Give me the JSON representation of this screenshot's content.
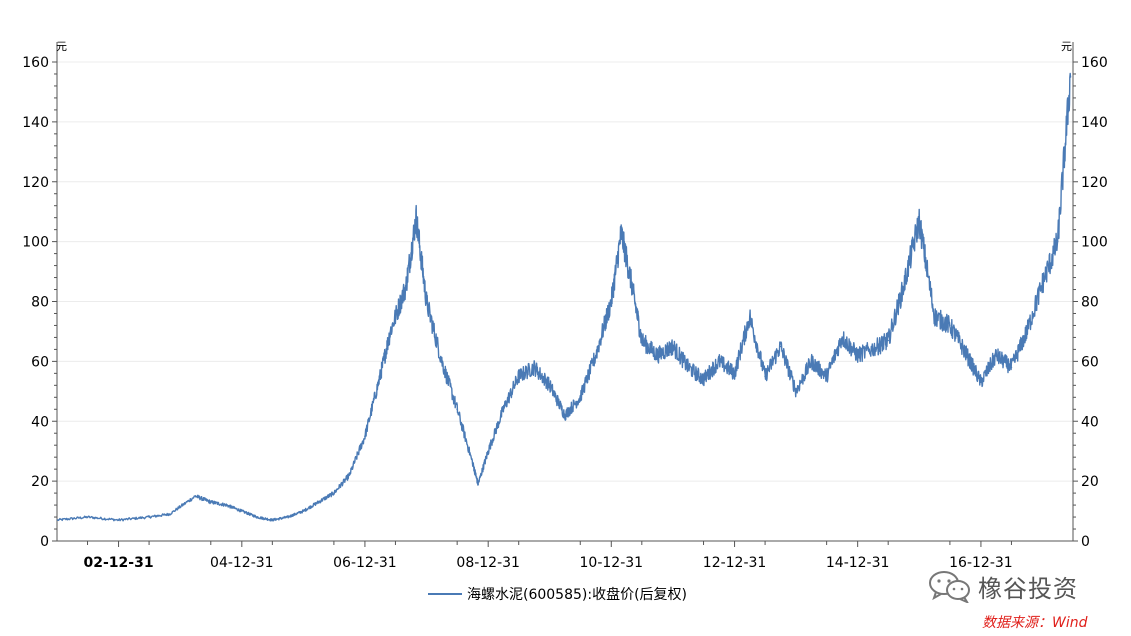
{
  "chart_data": {
    "type": "line",
    "ylabel_left": "元",
    "ylabel_right": "元",
    "ylim": [
      0,
      160
    ],
    "yticks": [
      0,
      20,
      40,
      60,
      80,
      100,
      120,
      140,
      160
    ],
    "xlim": [
      "2001-12-31",
      "2018-06-30"
    ],
    "xticks": [
      "02-12-31",
      "04-12-31",
      "06-12-31",
      "08-12-31",
      "10-12-31",
      "12-12-31",
      "14-12-31",
      "16-12-31"
    ],
    "grid": true,
    "legend": "bottom-center",
    "series": [
      {
        "name": "海螺水泥(600585):收盘价(后复权)",
        "color": "#4a7ab5",
        "x": [
          "2002-01-04",
          "2002-07-01",
          "2002-12-31",
          "2003-06-30",
          "2003-10-31",
          "2004-03-31",
          "2004-06-30",
          "2004-09-30",
          "2004-12-31",
          "2005-03-31",
          "2005-06-30",
          "2005-09-30",
          "2005-12-31",
          "2006-03-31",
          "2006-06-30",
          "2006-09-30",
          "2006-12-31",
          "2007-03-31",
          "2007-05-31",
          "2007-08-31",
          "2007-10-31",
          "2007-12-31",
          "2008-03-31",
          "2008-06-30",
          "2008-09-30",
          "2008-11-01",
          "2008-12-31",
          "2009-03-31",
          "2009-06-30",
          "2009-09-30",
          "2009-12-31",
          "2010-03-31",
          "2010-06-30",
          "2010-09-30",
          "2010-12-31",
          "2011-02-28",
          "2011-04-30",
          "2011-06-30",
          "2011-09-30",
          "2011-12-31",
          "2012-03-31",
          "2012-06-30",
          "2012-09-30",
          "2012-12-31",
          "2013-03-31",
          "2013-06-30",
          "2013-09-30",
          "2013-12-31",
          "2014-03-31",
          "2014-06-30",
          "2014-09-30",
          "2014-12-31",
          "2015-04-30",
          "2015-06-30",
          "2015-09-30",
          "2015-12-31",
          "2016-03-31",
          "2016-06-30",
          "2016-09-30",
          "2016-12-31",
          "2017-03-31",
          "2017-06-30",
          "2017-09-30",
          "2017-12-31",
          "2018-03-31",
          "2018-06-15"
        ],
        "values": [
          7,
          8,
          7,
          8,
          9,
          15,
          13,
          12,
          10,
          8,
          7,
          8,
          10,
          13,
          16,
          22,
          35,
          55,
          70,
          85,
          108,
          80,
          60,
          44,
          26,
          19,
          30,
          44,
          55,
          58,
          52,
          42,
          48,
          62,
          80,
          103,
          86,
          67,
          62,
          65,
          58,
          54,
          60,
          56,
          75,
          55,
          65,
          50,
          60,
          55,
          68,
          62,
          65,
          67,
          85,
          107,
          75,
          72,
          63,
          53,
          62,
          58,
          70,
          86,
          100,
          155
        ]
      }
    ]
  },
  "watermark": {
    "text": "橡谷投资",
    "icon": "wechat-icon"
  },
  "source": "数据来源：Wind"
}
